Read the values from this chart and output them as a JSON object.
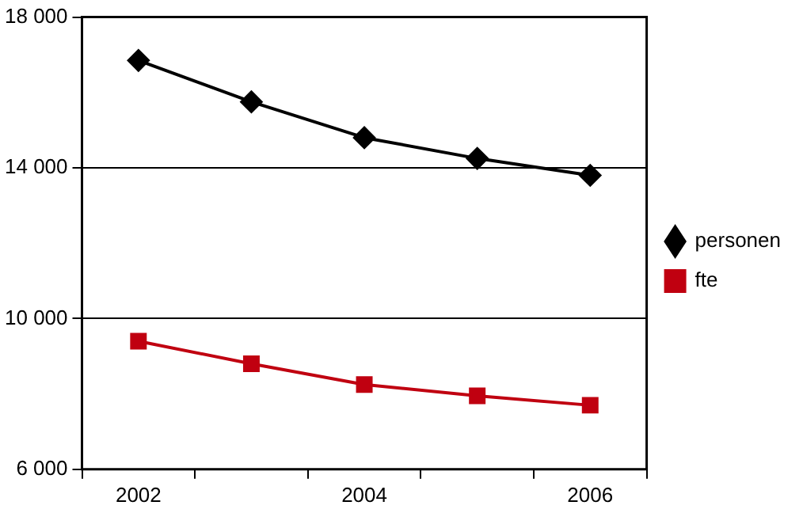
{
  "chart_data": {
    "type": "line",
    "categories": [
      "2002",
      null,
      "2004",
      null,
      "2006"
    ],
    "series": [
      {
        "name": "personen",
        "color": "#000000",
        "marker": "diamond",
        "values": [
          16850,
          15750,
          14800,
          14250,
          13800
        ]
      },
      {
        "name": "fte",
        "color": "#c00010",
        "marker": "square",
        "values": [
          9400,
          8800,
          8250,
          7950,
          7700
        ]
      }
    ],
    "ylim": [
      6000,
      18000
    ],
    "yticks": [
      {
        "value": 6000,
        "label": "6 000"
      },
      {
        "value": 10000,
        "label": "10 000"
      },
      {
        "value": 14000,
        "label": "14 000"
      },
      {
        "value": 18000,
        "label": "18 000"
      }
    ],
    "grid": "y",
    "legend": "right",
    "line_style": "solid"
  }
}
